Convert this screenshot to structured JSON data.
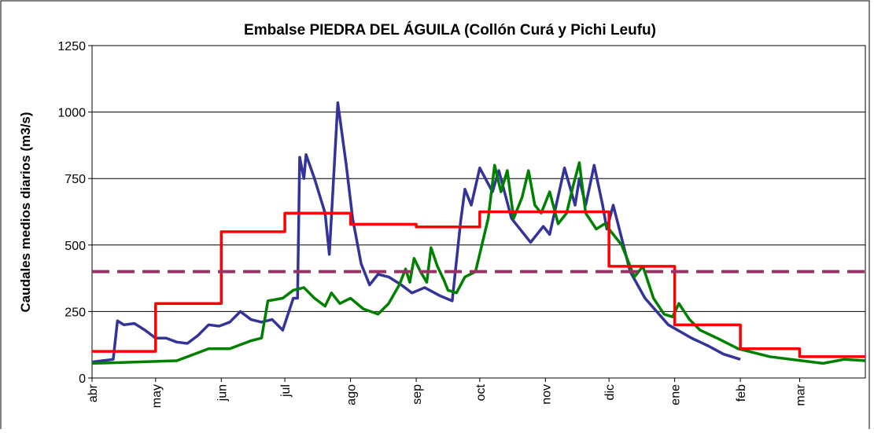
{
  "chart_data": {
    "type": "line",
    "title": "Embalse PIEDRA DEL ÁGUILA (Collón Curá y Pichi Leufu)",
    "y_label": "Caudales medios diarios (m3/s)",
    "xlim": [
      0,
      365
    ],
    "xticks": [
      {
        "value": 0,
        "label": "abr"
      },
      {
        "value": 30,
        "label": "may"
      },
      {
        "value": 61,
        "label": "jun"
      },
      {
        "value": 91,
        "label": "jul"
      },
      {
        "value": 122,
        "label": "ago"
      },
      {
        "value": 153,
        "label": "sep"
      },
      {
        "value": 183,
        "label": "oct"
      },
      {
        "value": 214,
        "label": "nov"
      },
      {
        "value": 244,
        "label": "dic"
      },
      {
        "value": 275,
        "label": "ene"
      },
      {
        "value": 306,
        "label": "feb"
      },
      {
        "value": 334,
        "label": "mar"
      }
    ],
    "ylim": [
      0,
      1250
    ],
    "yticks": [
      0,
      250,
      500,
      750,
      1000,
      1250
    ],
    "grid": true,
    "series": [
      {
        "color": "#333399",
        "x": [
          0,
          5,
          10,
          12,
          15,
          20,
          25,
          30,
          35,
          40,
          45,
          50,
          55,
          60,
          65,
          70,
          75,
          80,
          85,
          90,
          95,
          97,
          98,
          100,
          101,
          105,
          110,
          112,
          116,
          120,
          123,
          127,
          131,
          135,
          140,
          146,
          151,
          157,
          164,
          170,
          174,
          176,
          179,
          183,
          189,
          192,
          198,
          207,
          213,
          216,
          223,
          228,
          230,
          233,
          237,
          241,
          243,
          246,
          254,
          261,
          272,
          283,
          291,
          298,
          306
        ],
        "values": [
          60,
          65,
          70,
          215,
          200,
          205,
          180,
          150,
          150,
          135,
          130,
          160,
          200,
          195,
          210,
          250,
          220,
          210,
          220,
          180,
          300,
          300,
          830,
          750,
          840,
          750,
          620,
          465,
          1035,
          800,
          600,
          430,
          350,
          390,
          380,
          350,
          320,
          340,
          310,
          290,
          590,
          710,
          650,
          790,
          700,
          780,
          600,
          510,
          570,
          540,
          790,
          650,
          750,
          650,
          800,
          650,
          560,
          650,
          400,
          300,
          200,
          150,
          120,
          90,
          70
        ]
      },
      {
        "color": "#008000",
        "x": [
          0,
          20,
          40,
          55,
          65,
          75,
          80,
          83,
          90,
          95,
          100,
          105,
          110,
          113,
          117,
          122,
          128,
          135,
          140,
          145,
          148,
          150,
          152,
          155,
          158,
          160,
          163,
          166,
          168,
          172,
          176,
          181,
          184,
          187,
          190,
          193,
          196,
          199,
          203,
          206,
          209,
          212,
          216,
          220,
          224,
          227,
          230,
          233,
          238,
          242,
          246,
          250,
          256,
          260,
          265,
          270,
          274,
          277,
          282,
          287,
          295,
          305,
          320,
          335,
          345,
          355,
          365
        ],
        "values": [
          55,
          60,
          65,
          110,
          110,
          140,
          150,
          290,
          300,
          330,
          340,
          300,
          270,
          320,
          280,
          300,
          260,
          240,
          280,
          350,
          410,
          360,
          450,
          400,
          360,
          490,
          420,
          370,
          330,
          320,
          380,
          400,
          500,
          600,
          800,
          700,
          780,
          600,
          680,
          780,
          650,
          620,
          700,
          580,
          620,
          720,
          810,
          620,
          560,
          580,
          540,
          500,
          380,
          420,
          300,
          240,
          230,
          280,
          220,
          180,
          150,
          110,
          80,
          65,
          55,
          70,
          65
        ]
      },
      {
        "color": "#ff0000",
        "step": true,
        "x": [
          0,
          30,
          61,
          91,
          122,
          153,
          183,
          214,
          244,
          275,
          306,
          334
        ],
        "values": [
          100,
          280,
          550,
          620,
          578,
          568,
          625,
          625,
          420,
          200,
          110,
          80
        ]
      },
      {
        "color": "#993366",
        "dash": true,
        "x": [
          0,
          365
        ],
        "values": [
          400,
          400
        ]
      }
    ]
  }
}
